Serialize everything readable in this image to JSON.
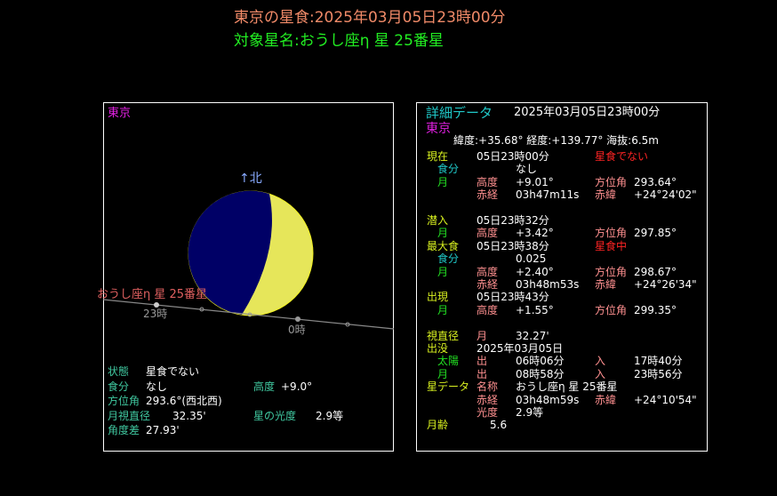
{
  "header": {
    "title": "東京の星食:2025年03月05日23時00分",
    "target": "対象星名:おうし座η 星 25番星"
  },
  "left_panel": {
    "location": "東京",
    "north_label": "↑北",
    "star_label": "おうし座η 星 25番星",
    "hour_labels": [
      "23時",
      "0時"
    ],
    "moon_colors": {
      "lit": "#e6e65a",
      "dark": "#000066"
    },
    "info_rows": [
      [
        {
          "t": "状態",
          "c": "tl",
          "x": "l1"
        },
        {
          "t": "星食でない",
          "c": "wh",
          "x": "l2"
        }
      ],
      [
        {
          "t": "食分",
          "c": "tl",
          "x": "l1"
        },
        {
          "t": "なし",
          "c": "wh",
          "x": "l2"
        },
        {
          "t": "高度",
          "c": "tl",
          "x": "l4"
        },
        {
          "t": "+9.0°",
          "c": "wh",
          "x": "l4b"
        }
      ],
      [
        {
          "t": "方位角",
          "c": "tl",
          "x": "l1"
        },
        {
          "t": "293.6°(西北西)",
          "c": "wh",
          "x": "l2"
        }
      ],
      [
        {
          "t": "月視直径",
          "c": "tl",
          "x": "l1"
        },
        {
          "t": "32.35'",
          "c": "wh",
          "x": "l3"
        },
        {
          "t": "星の光度",
          "c": "tl",
          "x": "l4"
        },
        {
          "t": "2.9等",
          "c": "wh",
          "x": "l5"
        }
      ],
      [
        {
          "t": "角度差",
          "c": "tl",
          "x": "l1"
        },
        {
          "t": "27.93'",
          "c": "wh",
          "x": "l2"
        }
      ]
    ]
  },
  "detail": {
    "title": "詳細データ",
    "datetime": "2025年03月05日23時00分",
    "location": "東京",
    "coords": "緯度:+35.68° 経度:+139.77° 海抜:6.5m",
    "rows": [
      {
        "y": 0,
        "cells": [
          {
            "t": "現在",
            "c": "yl",
            "x": "c1"
          },
          {
            "t": "05日23時00分",
            "c": "wh",
            "x": "c3"
          },
          {
            "t": "星食でない",
            "c": "rd",
            "x": "c5"
          }
        ]
      },
      {
        "y": 1,
        "cells": [
          {
            "t": "食分",
            "c": "cy",
            "x": "c2"
          },
          {
            "t": "なし",
            "c": "wh",
            "x": "c4"
          }
        ]
      },
      {
        "y": 2,
        "cells": [
          {
            "t": "月",
            "c": "gr",
            "x": "c2"
          },
          {
            "t": "高度",
            "c": "pk",
            "x": "c3"
          },
          {
            "t": "+9.01°",
            "c": "wh",
            "x": "c4"
          },
          {
            "t": "方位角",
            "c": "pk",
            "x": "c5"
          },
          {
            "t": "293.64°",
            "c": "wh",
            "x": "c6"
          }
        ]
      },
      {
        "y": 3,
        "cells": [
          {
            "t": "赤経",
            "c": "pk",
            "x": "c3"
          },
          {
            "t": "03h47m11s",
            "c": "wh",
            "x": "c4"
          },
          {
            "t": "赤緯",
            "c": "pk",
            "x": "c5"
          },
          {
            "t": "+24°24'02\"",
            "c": "wh",
            "x": "c6"
          }
        ]
      },
      {
        "y": 5,
        "cells": [
          {
            "t": "潜入",
            "c": "yl",
            "x": "c1"
          },
          {
            "t": "05日23時32分",
            "c": "wh",
            "x": "c3"
          }
        ]
      },
      {
        "y": 6,
        "cells": [
          {
            "t": "月",
            "c": "gr",
            "x": "c2"
          },
          {
            "t": "高度",
            "c": "pk",
            "x": "c3"
          },
          {
            "t": "+3.42°",
            "c": "wh",
            "x": "c4"
          },
          {
            "t": "方位角",
            "c": "pk",
            "x": "c5"
          },
          {
            "t": "297.85°",
            "c": "wh",
            "x": "c6"
          }
        ]
      },
      {
        "y": 7,
        "cells": [
          {
            "t": "最大食",
            "c": "yl",
            "x": "c1"
          },
          {
            "t": "05日23時38分",
            "c": "wh",
            "x": "c3"
          },
          {
            "t": "星食中",
            "c": "rd",
            "x": "c5"
          }
        ]
      },
      {
        "y": 8,
        "cells": [
          {
            "t": "食分",
            "c": "cy",
            "x": "c2"
          },
          {
            "t": "0.025",
            "c": "wh",
            "x": "c4"
          }
        ]
      },
      {
        "y": 9,
        "cells": [
          {
            "t": "月",
            "c": "gr",
            "x": "c2"
          },
          {
            "t": "高度",
            "c": "pk",
            "x": "c3"
          },
          {
            "t": "+2.40°",
            "c": "wh",
            "x": "c4"
          },
          {
            "t": "方位角",
            "c": "pk",
            "x": "c5"
          },
          {
            "t": "298.67°",
            "c": "wh",
            "x": "c6"
          }
        ]
      },
      {
        "y": 10,
        "cells": [
          {
            "t": "赤経",
            "c": "pk",
            "x": "c3"
          },
          {
            "t": "03h48m53s",
            "c": "wh",
            "x": "c4"
          },
          {
            "t": "赤緯",
            "c": "pk",
            "x": "c5"
          },
          {
            "t": "+24°26'34\"",
            "c": "wh",
            "x": "c6"
          }
        ]
      },
      {
        "y": 11,
        "cells": [
          {
            "t": "出現",
            "c": "yl",
            "x": "c1"
          },
          {
            "t": "05日23時43分",
            "c": "wh",
            "x": "c3"
          }
        ]
      },
      {
        "y": 12,
        "cells": [
          {
            "t": "月",
            "c": "gr",
            "x": "c2"
          },
          {
            "t": "高度",
            "c": "pk",
            "x": "c3"
          },
          {
            "t": "+1.55°",
            "c": "wh",
            "x": "c4"
          },
          {
            "t": "方位角",
            "c": "pk",
            "x": "c5"
          },
          {
            "t": "299.35°",
            "c": "wh",
            "x": "c6"
          }
        ]
      },
      {
        "y": 14,
        "cells": [
          {
            "t": "視直径",
            "c": "yl",
            "x": "c1"
          },
          {
            "t": "月",
            "c": "pk",
            "x": "c3"
          },
          {
            "t": "32.27'",
            "c": "wh",
            "x": "c4"
          }
        ]
      },
      {
        "y": 15,
        "cells": [
          {
            "t": "出没",
            "c": "yl",
            "x": "c1"
          },
          {
            "t": "2025年03月05日",
            "c": "wh",
            "x": "c3"
          }
        ]
      },
      {
        "y": 16,
        "cells": [
          {
            "t": "太陽",
            "c": "gr",
            "x": "c2"
          },
          {
            "t": "出",
            "c": "pk",
            "x": "c3"
          },
          {
            "t": "06時06分",
            "c": "wh",
            "x": "c4"
          },
          {
            "t": "入",
            "c": "pk",
            "x": "c5"
          },
          {
            "t": "17時40分",
            "c": "wh",
            "x": "c6"
          }
        ]
      },
      {
        "y": 17,
        "cells": [
          {
            "t": "月",
            "c": "gr",
            "x": "c2"
          },
          {
            "t": "出",
            "c": "pk",
            "x": "c3"
          },
          {
            "t": "08時58分",
            "c": "wh",
            "x": "c4"
          },
          {
            "t": "入",
            "c": "pk",
            "x": "c5"
          },
          {
            "t": "23時56分",
            "c": "wh",
            "x": "c6"
          }
        ]
      },
      {
        "y": 18,
        "cells": [
          {
            "t": "星データ",
            "c": "yl",
            "x": "c1"
          },
          {
            "t": "名称",
            "c": "pk",
            "x": "c3"
          },
          {
            "t": "おうし座η 星 25番星",
            "c": "wh",
            "x": "c4"
          }
        ]
      },
      {
        "y": 19,
        "cells": [
          {
            "t": "赤経",
            "c": "pk",
            "x": "c3"
          },
          {
            "t": "03h48m59s",
            "c": "wh",
            "x": "c4"
          },
          {
            "t": "赤緯",
            "c": "pk",
            "x": "c5"
          },
          {
            "t": "+24°10'54\"",
            "c": "wh",
            "x": "c6"
          }
        ]
      },
      {
        "y": 20,
        "cells": [
          {
            "t": "光度",
            "c": "pk",
            "x": "c3"
          },
          {
            "t": "2.9等",
            "c": "wh",
            "x": "c4"
          }
        ]
      },
      {
        "y": 21,
        "cells": [
          {
            "t": "月齢",
            "c": "yl",
            "x": "c1"
          },
          {
            "t": "5.6",
            "c": "wh",
            "x": "c7"
          }
        ]
      }
    ]
  }
}
